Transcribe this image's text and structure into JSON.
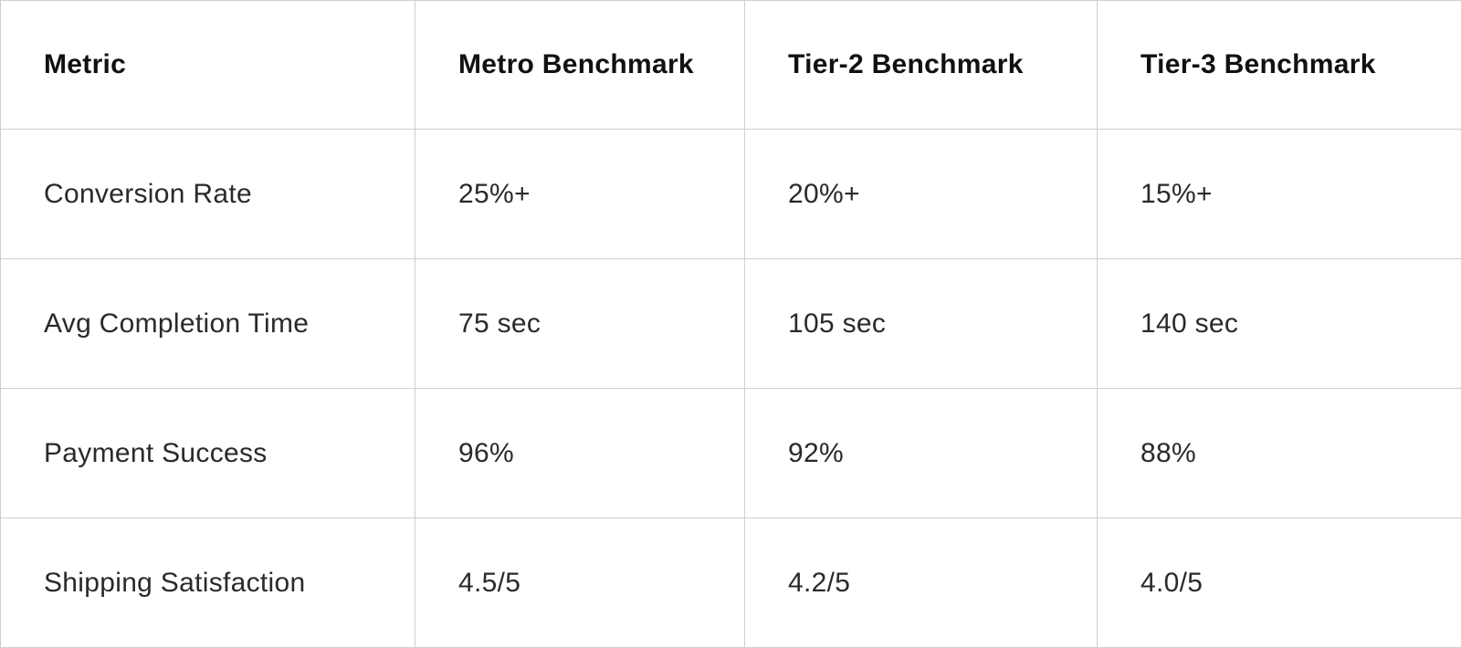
{
  "table": {
    "headers": [
      "Metric",
      "Metro Benchmark",
      "Tier-2 Benchmark",
      "Tier-3 Benchmark"
    ],
    "rows": [
      [
        "Conversion Rate",
        "25%+",
        "20%+",
        "15%+"
      ],
      [
        "Avg Completion Time",
        "75 sec",
        "105 sec",
        "140 sec"
      ],
      [
        "Payment Success",
        "96%",
        "92%",
        "88%"
      ],
      [
        "Shipping Satisfaction",
        "4.5/5",
        "4.2/5",
        "4.0/5"
      ]
    ]
  }
}
